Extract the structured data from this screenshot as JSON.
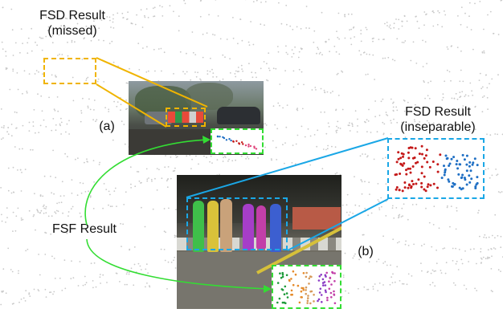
{
  "labels": {
    "fsd_missed": {
      "line1": "FSD Result",
      "line2": "(missed)"
    },
    "fsd_inseparable": {
      "line1": "FSD Result",
      "line2": "(inseparable)"
    },
    "fsf": "FSF Result",
    "panel_a": "(a)",
    "panel_b": "(b)"
  },
  "colors": {
    "fsd_missed_box": "#f0b400",
    "fsd_inseparable_box": "#1aa7e6",
    "fsf_result": "#33dd33",
    "cluster_red": "#c41818",
    "cluster_blue": "#1f6fc4",
    "cluster_green": "#1c9a3a",
    "cluster_orange": "#e58a2a",
    "cluster_purple": "#8a3ac4"
  },
  "icons": {
    "background": "lidar-point-cloud-background",
    "photo_a": "street-camera-photo",
    "photo_b": "pedestrian-crossing-photo"
  }
}
